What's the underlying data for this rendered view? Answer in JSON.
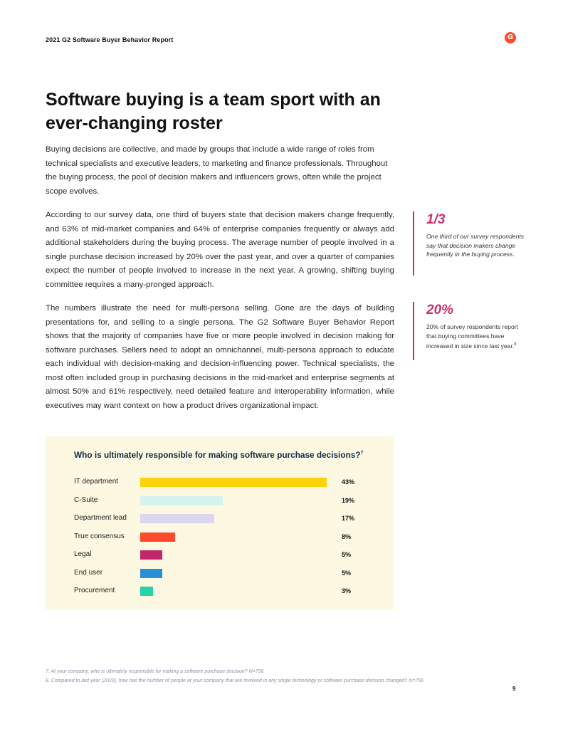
{
  "header": {
    "report_title": "2021 G2 Software Buyer Behavior Report",
    "logo_text": "G"
  },
  "title": "Software buying is a team sport with an ever-changing roster",
  "paragraphs": [
    "Buying decisions are collective, and made by groups that include a wide range of roles from technical specialists and executive leaders, to marketing and finance professionals. Throughout the buying process, the pool of decision makers and influencers grows, often while the project scope evolves.",
    "According to our survey data, one third of buyers state that decision makers change frequently, and 63% of mid-market companies and 64% of enterprise companies frequently or always add additional stakeholders during the buying process. The average number of people involved in a single purchase decision increased by 20% over the past year, and over a quarter of companies expect the number of people involved to increase in the next year. A growing, shifting buying committee requires a many-pronged approach.",
    "The numbers illustrate the need for multi-persona selling. Gone are the days of building presentations for, and selling to a single persona. The G2 Software Buyer Behavior Report shows that the majority of companies have five or more people involved in decision making for software purchases. Sellers need to adopt an omnichannel, multi-persona approach to educate each individual with decision-making and decision-influencing power. Technical specialists, the most often included group in purchasing decisions in the mid-market and enterprise segments at almost 50% and 61% respectively, need detailed feature and interoperability information, while executives may want context on how a product drives organizational impact."
  ],
  "callouts": [
    {
      "stat": "1/3",
      "text": "One third of our survey respondents say that decision makers change frequently in the buying process."
    },
    {
      "stat": "20%",
      "text": "20% of survey respondents report that buying committees have increased in size since last year.",
      "footnote_ref": "8"
    }
  ],
  "chart_data": {
    "type": "bar",
    "orientation": "horizontal",
    "title": "Who is ultimately responsible for making software purchase decisions?",
    "title_footnote_ref": "7",
    "categories": [
      "IT department",
      "C-Suite",
      "Department lead",
      "True consensus",
      "Legal",
      "End user",
      "Procurement"
    ],
    "values": [
      43,
      19,
      17,
      8,
      5,
      5,
      3
    ],
    "value_labels": [
      "43%",
      "19%",
      "17%",
      "8%",
      "5%",
      "5%",
      "3%"
    ],
    "colors": [
      "#fdd20a",
      "#d5f3ee",
      "#dcd6ef",
      "#ff492c",
      "#c2266d",
      "#2b8fd6",
      "#27d3a8"
    ],
    "background": "#fdf8e1",
    "grid": false
  },
  "footnotes": [
    "7. At your company, who is ultimately responsible for making a software purchase decision?  N=756",
    "8. Compared to last year (2020), how has the number of people at your company that are involved in any single technology or software purchase decision changed?  N=756"
  ],
  "page_number": "9"
}
